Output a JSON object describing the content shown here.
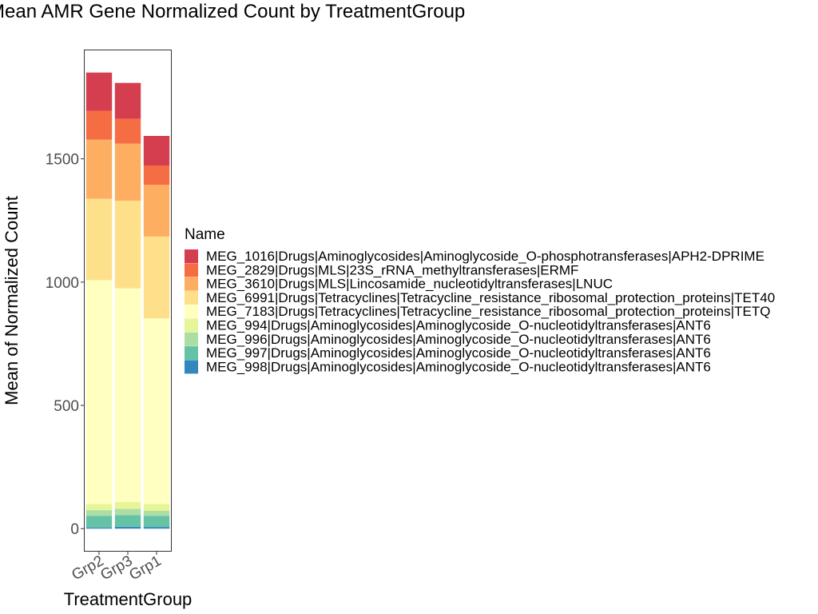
{
  "chart_data": {
    "type": "bar",
    "stacked": true,
    "title": "Mean AMR Gene Normalized Count by TreatmentGroup",
    "xlabel": "TreatmentGroup",
    "ylabel": "Mean of Normalized Count",
    "ylim": [
      -90,
      1940
    ],
    "yticks": [
      0,
      500,
      1000,
      1500
    ],
    "grid": false,
    "legend_title": "Name",
    "legend_position": "right",
    "categories": [
      "Grp2",
      "Grp3",
      "Grp1"
    ],
    "series": [
      {
        "name": "MEG_1016|Drugs|Aminoglycosides|Aminoglycoside_O-phosphotransferases|APH2-DPRIME",
        "color": "#d53e4f",
        "values": [
          155,
          145,
          120
        ]
      },
      {
        "name": "MEG_2829|Drugs|MLS|23S_rRNA_methyltransferases|ERMF",
        "color": "#f46d43",
        "values": [
          117,
          101,
          78
        ]
      },
      {
        "name": "MEG_3610|Drugs|MLS|Lincosamide_nucleotidyltransferases|LNUC",
        "color": "#fdae61",
        "values": [
          240,
          232,
          210
        ]
      },
      {
        "name": "MEG_6991|Drugs|Tetracyclines|Tetracycline_resistance_ribosomal_protection_proteins|TET40",
        "color": "#fee08b",
        "values": [
          330,
          355,
          332
        ]
      },
      {
        "name": "MEG_7183|Drugs|Tetracyclines|Tetracycline_resistance_ribosomal_protection_proteins|TETQ",
        "color": "#ffffbf",
        "values": [
          908,
          867,
          753
        ]
      },
      {
        "name": "MEG_994|Drugs|Aminoglycosides|Aminoglycoside_O-nucleotidyltransferases|ANT6",
        "color": "#e6f598",
        "values": [
          25,
          28,
          28
        ]
      },
      {
        "name": "MEG_996|Drugs|Aminoglycosides|Aminoglycoside_O-nucleotidyltransferases|ANT6",
        "color": "#abdda4",
        "values": [
          23,
          25,
          20
        ]
      },
      {
        "name": "MEG_997|Drugs|Aminoglycosides|Aminoglycoside_O-nucleotidyltransferases|ANT6",
        "color": "#66c2a5",
        "values": [
          47,
          47,
          45
        ]
      },
      {
        "name": "MEG_998|Drugs|Aminoglycosides|Aminoglycoside_O-nucleotidyltransferases|ANT6",
        "color": "#3288bd",
        "values": [
          5,
          8,
          7
        ]
      }
    ]
  }
}
